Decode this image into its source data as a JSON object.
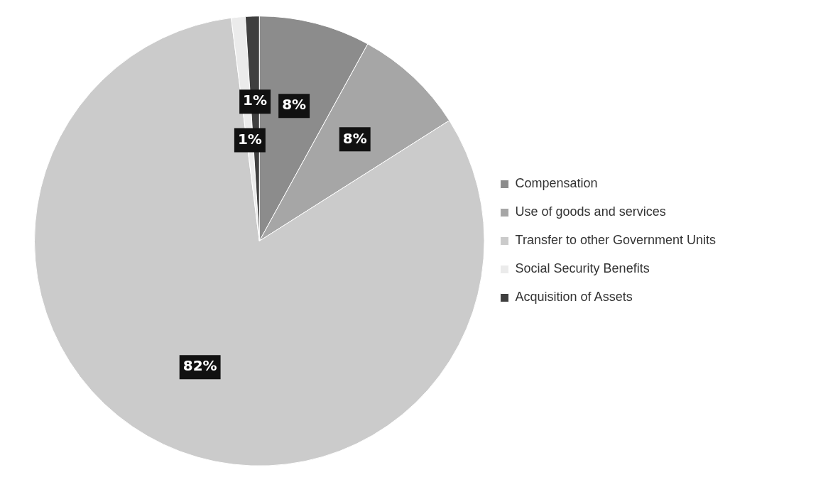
{
  "chart_data": {
    "type": "pie",
    "categories": [
      "Compensation",
      "Use of goods and services",
      "Transfer to other Government Units",
      "Social Security Benefits",
      "Acquisition of Assets"
    ],
    "values": [
      8,
      8,
      82,
      1,
      1
    ],
    "colors": [
      "#8c8c8c",
      "#a6a6a6",
      "#cbcbcb",
      "#ebebeb",
      "#3f3f3f"
    ],
    "value_labels": [
      "8%",
      "8%",
      "82%",
      "1%",
      "1%"
    ],
    "legend": "right"
  }
}
